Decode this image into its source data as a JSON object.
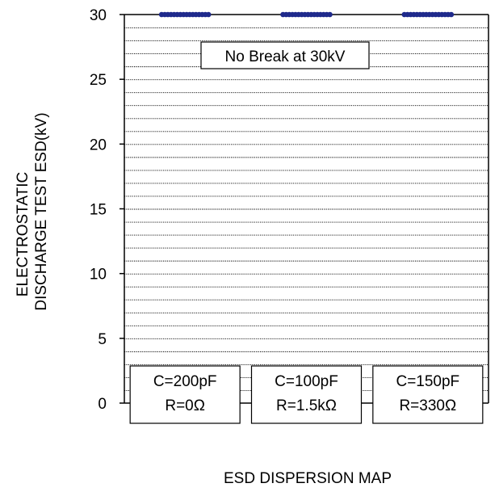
{
  "chart_data": {
    "type": "scatter",
    "xlabel": "ESD DISPERSION MAP",
    "ylabel_lines": [
      "ELECTROSTATIC",
      "DISCHARGE TEST ESD(kV)"
    ],
    "ylim": [
      0,
      30
    ],
    "yticks": [
      0,
      5,
      10,
      15,
      20,
      25,
      30
    ],
    "grid": {
      "horizontal": true,
      "minor_step": 1
    },
    "annotation": "No Break at 30kV",
    "groups": [
      {
        "label_lines": [
          "C=200pF",
          "R=0Ω"
        ],
        "values": [
          30,
          30,
          30,
          30,
          30,
          30,
          30,
          30,
          30,
          30,
          30,
          30,
          30,
          30,
          30,
          30
        ]
      },
      {
        "label_lines": [
          "C=100pF",
          "R=1.5kΩ"
        ],
        "values": [
          30,
          30,
          30,
          30,
          30,
          30,
          30,
          30,
          30,
          30,
          30,
          30,
          30,
          30,
          30,
          30
        ]
      },
      {
        "label_lines": [
          "C=150pF",
          "R=330Ω"
        ],
        "values": [
          30,
          30,
          30,
          30,
          30,
          30,
          30,
          30,
          30,
          30,
          30,
          30,
          30,
          30,
          30,
          30
        ]
      }
    ],
    "colors": {
      "points": "#1f2a8c",
      "frame": "#000000",
      "grid": "#000000"
    }
  }
}
